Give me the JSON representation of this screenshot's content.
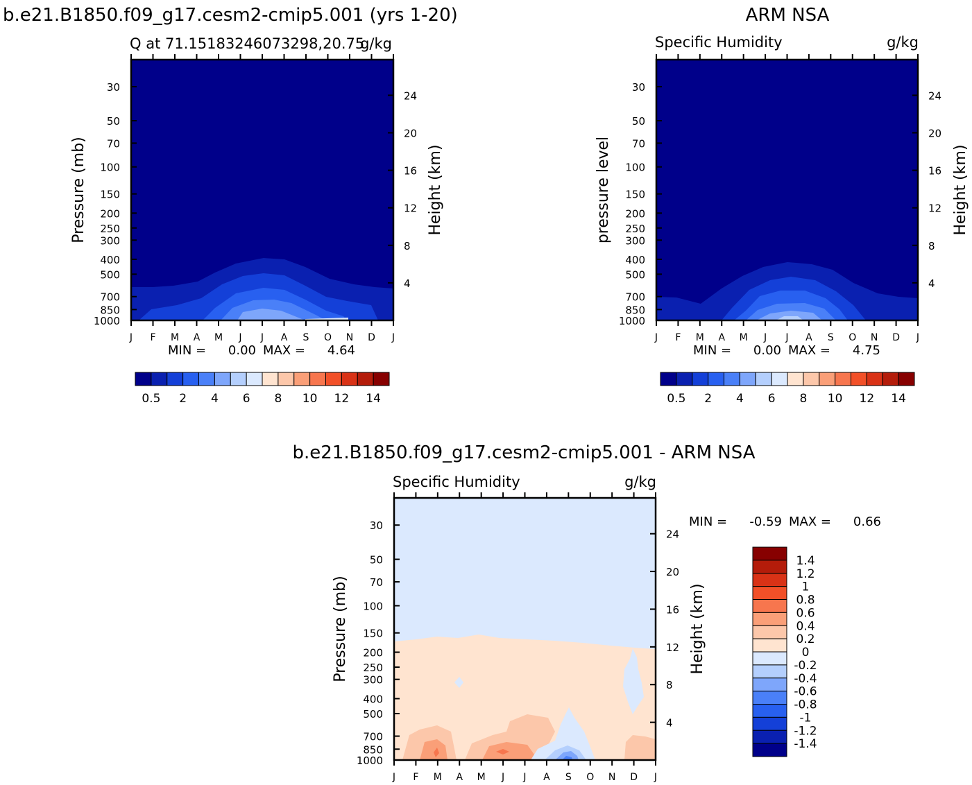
{
  "chart_data": [
    {
      "type": "heatmap",
      "title": "b.e21.B1850.f09_g17.cesm2-cmip5.001 (yrs 1-20)",
      "subtitle_left": "Q at 71.15183246073298,20.75",
      "subtitle_right": "g/kg",
      "ylabel": "Pressure (mb)",
      "ylabel_right": "Height (km)",
      "x_ticks": [
        "J",
        "F",
        "M",
        "A",
        "M",
        "J",
        "J",
        "A",
        "S",
        "O",
        "N",
        "D",
        "J"
      ],
      "y_ticks": [
        "30",
        "50",
        "70",
        "100",
        "150",
        "200",
        "250",
        "300",
        "400",
        "500",
        "700",
        "850",
        "1000"
      ],
      "y_ticks_right": [
        "24",
        "20",
        "16",
        "12",
        "8",
        "4"
      ],
      "stats": {
        "min_label": "MIN =",
        "min": "0.00",
        "max_label": "MAX =",
        "max": "4.64"
      },
      "colorbar_labels": [
        "0.5",
        "2",
        "4",
        "6",
        "8",
        "10",
        "12",
        "14"
      ],
      "colorbar_colors": [
        "#00008a",
        "#0a20b0",
        "#1440d8",
        "#2860f0",
        "#4a80f8",
        "#7ea6fb",
        "#b4cffd",
        "#dbe9fe",
        "#ffe4d0",
        "#fcc7aa",
        "#fa9f78",
        "#f7764e",
        "#f25028",
        "#d93216",
        "#b41c0a",
        "#870000"
      ]
    },
    {
      "type": "heatmap",
      "title": "ARM NSA",
      "subtitle_left": "Specific Humidity",
      "subtitle_right": "g/kg",
      "ylabel": "pressure level",
      "ylabel_right": "Height (km)",
      "x_ticks": [
        "J",
        "F",
        "M",
        "A",
        "M",
        "J",
        "J",
        "A",
        "S",
        "O",
        "N",
        "D",
        "J"
      ],
      "y_ticks": [
        "30",
        "50",
        "70",
        "100",
        "150",
        "200",
        "250",
        "300",
        "400",
        "500",
        "700",
        "850",
        "1000"
      ],
      "y_ticks_right": [
        "24",
        "20",
        "16",
        "12",
        "8",
        "4"
      ],
      "stats": {
        "min_label": "MIN =",
        "min": "0.00",
        "max_label": "MAX =",
        "max": "4.75"
      },
      "colorbar_labels": [
        "0.5",
        "2",
        "4",
        "6",
        "8",
        "10",
        "12",
        "14"
      ]
    },
    {
      "type": "heatmap",
      "title": "b.e21.B1850.f09_g17.cesm2-cmip5.001 - ARM NSA",
      "subtitle_left": "Specific Humidity",
      "subtitle_right": "g/kg",
      "ylabel": "Pressure (mb)",
      "ylabel_right": "Height (km)",
      "x_ticks": [
        "J",
        "F",
        "M",
        "A",
        "M",
        "J",
        "J",
        "A",
        "S",
        "O",
        "N",
        "D",
        "J"
      ],
      "y_ticks": [
        "30",
        "50",
        "70",
        "100",
        "150",
        "200",
        "250",
        "300",
        "400",
        "500",
        "700",
        "850",
        "1000"
      ],
      "y_ticks_right": [
        "24",
        "20",
        "16",
        "12",
        "8",
        "4"
      ],
      "stats": {
        "min_label": "MIN =",
        "min": "-0.59",
        "max_label": "MAX =",
        "max": "0.66"
      },
      "colorbar_labels": [
        "1.4",
        "1.2",
        "1",
        "0.8",
        "0.6",
        "0.4",
        "0.2",
        "0",
        "-0.2",
        "-0.4",
        "-0.6",
        "-0.8",
        "-1",
        "-1.2",
        "-1.4"
      ],
      "colorbar_colors": [
        "#870000",
        "#b41c0a",
        "#d93216",
        "#f25028",
        "#f7764e",
        "#fa9f78",
        "#fcc7aa",
        "#ffe4d0",
        "#dbe9fe",
        "#b4cffd",
        "#7ea6fb",
        "#4a80f8",
        "#2860f0",
        "#1440d8",
        "#0a20b0",
        "#00008a"
      ]
    }
  ]
}
